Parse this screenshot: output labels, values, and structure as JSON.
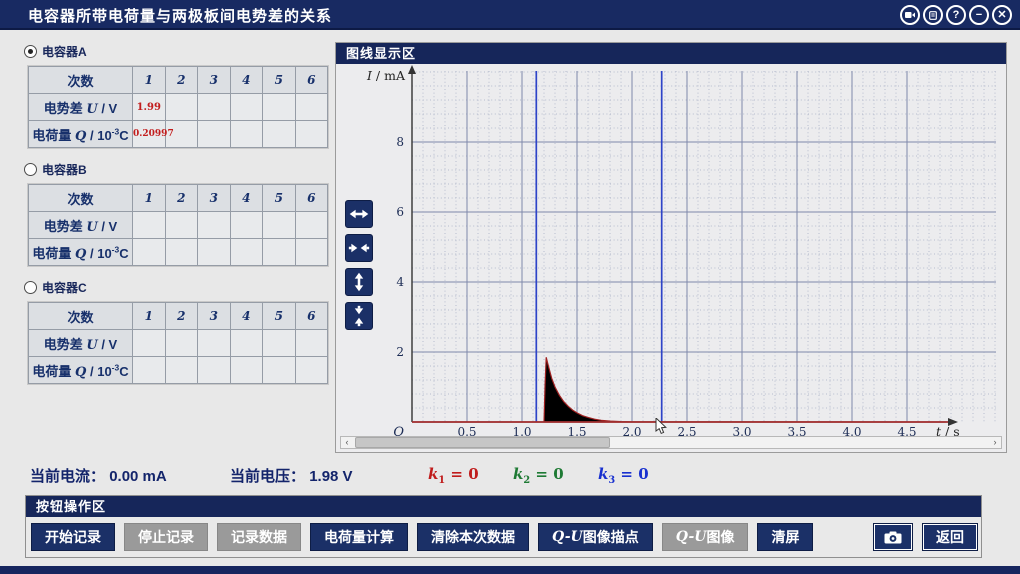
{
  "title_bar": {
    "title": "电容器所带电荷量与两极板间电势差的关系",
    "icons": {
      "video": "video-camera-icon",
      "report": "report-icon",
      "help_glyph": "?",
      "minimize_glyph": "−",
      "close_glyph": "✕"
    }
  },
  "capacitors": [
    {
      "id": "a",
      "label": "电容器A",
      "selected": true,
      "table": {
        "corner": "次数",
        "trials": [
          "1",
          "2",
          "3",
          "4",
          "5",
          "6"
        ],
        "rows": [
          {
            "label_parts": [
              {
                "t": "电势差 "
              },
              {
                "t": "U",
                "italic": true
              },
              {
                "t": " / V"
              }
            ],
            "values": [
              "1.99",
              "",
              "",
              "",
              "",
              ""
            ]
          },
          {
            "label_parts": [
              {
                "t": "电荷量 "
              },
              {
                "t": "Q",
                "italic": true
              },
              {
                "t": " / 10"
              },
              {
                "t": "-3",
                "sup": true
              },
              {
                "t": "C"
              }
            ],
            "values": [
              "0.20997",
              "",
              "",
              "",
              "",
              ""
            ]
          }
        ]
      }
    },
    {
      "id": "b",
      "label": "电容器B",
      "selected": false,
      "table": {
        "corner": "次数",
        "trials": [
          "1",
          "2",
          "3",
          "4",
          "5",
          "6"
        ],
        "rows": [
          {
            "label_parts": [
              {
                "t": "电势差 "
              },
              {
                "t": "U",
                "italic": true
              },
              {
                "t": " / V"
              }
            ],
            "values": [
              "",
              "",
              "",
              "",
              "",
              ""
            ]
          },
          {
            "label_parts": [
              {
                "t": "电荷量 "
              },
              {
                "t": "Q",
                "italic": true
              },
              {
                "t": " / 10"
              },
              {
                "t": "-3",
                "sup": true
              },
              {
                "t": "C"
              }
            ],
            "values": [
              "",
              "",
              "",
              "",
              "",
              ""
            ]
          }
        ]
      }
    },
    {
      "id": "c",
      "label": "电容器C",
      "selected": false,
      "table": {
        "corner": "次数",
        "trials": [
          "1",
          "2",
          "3",
          "4",
          "5",
          "6"
        ],
        "rows": [
          {
            "label_parts": [
              {
                "t": "电势差 "
              },
              {
                "t": "U",
                "italic": true
              },
              {
                "t": " / V"
              }
            ],
            "values": [
              "",
              "",
              "",
              "",
              "",
              ""
            ]
          },
          {
            "label_parts": [
              {
                "t": "电荷量 "
              },
              {
                "t": "Q",
                "italic": true
              },
              {
                "t": " / 10"
              },
              {
                "t": "-3",
                "sup": true
              },
              {
                "t": "C"
              }
            ],
            "values": [
              "",
              "",
              "",
              "",
              "",
              ""
            ]
          }
        ]
      }
    }
  ],
  "graph_panel": {
    "header": "图线显示区",
    "zoom_buttons": [
      {
        "name": "expand-horizontal-button",
        "orient": "h",
        "mode": "out"
      },
      {
        "name": "compress-horizontal-button",
        "orient": "h",
        "mode": "in"
      },
      {
        "name": "expand-vertical-button",
        "orient": "v",
        "mode": "out"
      },
      {
        "name": "compress-vertical-button",
        "orient": "v",
        "mode": "in"
      }
    ],
    "scrollbar": {
      "left_glyph": "‹",
      "right_glyph": "›"
    }
  },
  "chart_data": {
    "type": "area",
    "title": "",
    "xlabel_parts": [
      {
        "t": "t",
        "italic": true
      },
      {
        "t": " / s"
      }
    ],
    "ylabel_parts": [
      {
        "t": "I",
        "italic": true
      },
      {
        "t": " / mA"
      }
    ],
    "origin_label": "O",
    "x_ticks": [
      "0.5",
      "1.0",
      "1.5",
      "2.0",
      "2.5",
      "3.0",
      "3.5",
      "4.0",
      "4.5"
    ],
    "x_tick_values": [
      0.5,
      1.0,
      1.5,
      2.0,
      2.5,
      3.0,
      3.5,
      4.0,
      4.5
    ],
    "y_ticks": [
      2,
      4,
      6,
      8
    ],
    "xlim": [
      0,
      4.9
    ],
    "ylim": [
      0,
      10
    ],
    "grid": {
      "minor_dotted": true,
      "major_x_step": 0.5,
      "major_y_step": 2,
      "minor_color": "#b6bccd",
      "major_color": "#7e88aa"
    },
    "marker_lines": {
      "color": "#2e44c8",
      "x_values": [
        1.13,
        2.27
      ]
    },
    "axis_colors": {
      "x_axis": "#a03030",
      "y_axis": "#333333",
      "labels": "#1c2c55"
    },
    "series": [
      {
        "name": "capacitor-discharge-current",
        "stroke": "#a02020",
        "fill": "#000000",
        "points": [
          [
            0,
            0
          ],
          [
            1.2,
            0
          ],
          [
            1.21,
            1.1
          ],
          [
            1.22,
            1.85
          ],
          [
            1.24,
            1.6
          ],
          [
            1.27,
            1.25
          ],
          [
            1.3,
            1.0
          ],
          [
            1.34,
            0.76
          ],
          [
            1.38,
            0.58
          ],
          [
            1.42,
            0.45
          ],
          [
            1.46,
            0.34
          ],
          [
            1.5,
            0.26
          ],
          [
            1.55,
            0.18
          ],
          [
            1.6,
            0.13
          ],
          [
            1.66,
            0.08
          ],
          [
            1.72,
            0.05
          ],
          [
            1.8,
            0.025
          ],
          [
            1.9,
            0.01
          ],
          [
            2.0,
            0.005
          ],
          [
            4.85,
            0
          ]
        ]
      }
    ]
  },
  "status_bar": {
    "current_label": "当前电流：",
    "current_value": "0.00  mA",
    "voltage_label": "当前电压：",
    "voltage_value": "1.98  V",
    "k_values": [
      {
        "symbol": "k",
        "sub": "1",
        "rest": " = 0",
        "color": "#c01c1c"
      },
      {
        "symbol": "k",
        "sub": "2",
        "rest": " = 0",
        "color": "#1e7a34"
      },
      {
        "symbol": "k",
        "sub": "3",
        "rest": " = 0",
        "color": "#1830cf"
      }
    ]
  },
  "button_panel": {
    "header": "按钮操作区",
    "buttons": [
      {
        "name": "start-record-button",
        "style": "navy",
        "parts": [
          {
            "t": "开始记录"
          }
        ]
      },
      {
        "name": "stop-record-button",
        "style": "gray",
        "parts": [
          {
            "t": "停止记录"
          }
        ]
      },
      {
        "name": "record-data-button",
        "style": "gray",
        "parts": [
          {
            "t": "记录数据"
          }
        ]
      },
      {
        "name": "charge-calculate-button",
        "style": "navy",
        "parts": [
          {
            "t": "电荷量计算"
          }
        ]
      },
      {
        "name": "clear-current-data-button",
        "style": "navy",
        "parts": [
          {
            "t": "清除本次数据"
          }
        ]
      },
      {
        "name": "qu-plot-points-button",
        "style": "navy",
        "parts": [
          {
            "t": "Q-U",
            "italic": true
          },
          {
            "t": "图像描点"
          }
        ]
      },
      {
        "name": "qu-image-button",
        "style": "gray",
        "parts": [
          {
            "t": "Q-U",
            "italic": true
          },
          {
            "t": "图像"
          }
        ]
      },
      {
        "name": "clear-screen-button",
        "style": "navy",
        "parts": [
          {
            "t": "清屏"
          }
        ]
      }
    ],
    "camera_button": {
      "name": "screenshot-camera-button"
    },
    "back_button": {
      "name": "back-button",
      "label": "返回"
    }
  }
}
